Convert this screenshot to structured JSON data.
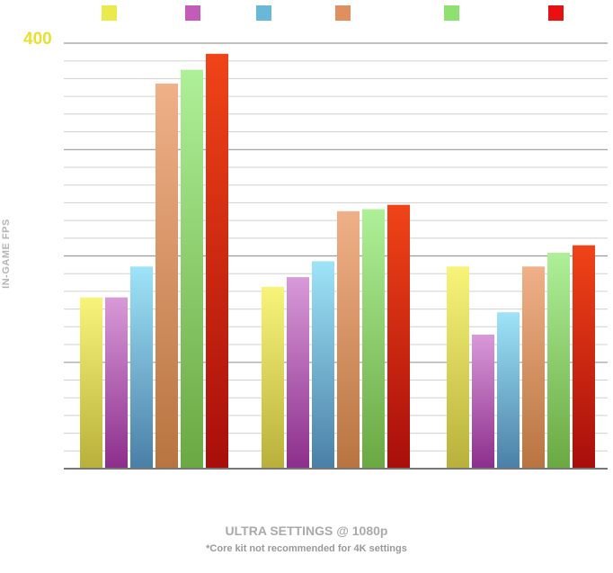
{
  "chart_data": {
    "type": "bar",
    "ylabel": "IN-GAME FPS",
    "ymax_label": "400",
    "ylim": [
      0,
      400
    ],
    "xlabel": "ULTRA SETTINGS @ 1080p",
    "note": "*Core kit not recommended for 4K settings",
    "groups": 3,
    "series": [
      {
        "values": [
          161,
          171,
          190
        ],
        "color_top": "#f8f47a",
        "color_bottom": "#b8b03a"
      },
      {
        "values": [
          161,
          180,
          126
        ],
        "color_top": "#d89ad8",
        "color_bottom": "#8c2e8c"
      },
      {
        "values": [
          190,
          195,
          147
        ],
        "color_top": "#9ee4f8",
        "color_bottom": "#4a7fa6"
      },
      {
        "values": [
          362,
          242,
          190
        ],
        "color_top": "#f0b088",
        "color_bottom": "#b87440"
      },
      {
        "values": [
          375,
          244,
          203
        ],
        "color_top": "#aef098",
        "color_bottom": "#6aa842"
      },
      {
        "values": [
          390,
          248,
          210
        ],
        "color_top": "#f04418",
        "color_bottom": "#a80e0a"
      }
    ],
    "legend_colors": [
      "#eaea4c",
      "#c25cb8",
      "#6ab8d8",
      "#e09060",
      "#8ee070",
      "#e81010"
    ],
    "grid": true
  }
}
